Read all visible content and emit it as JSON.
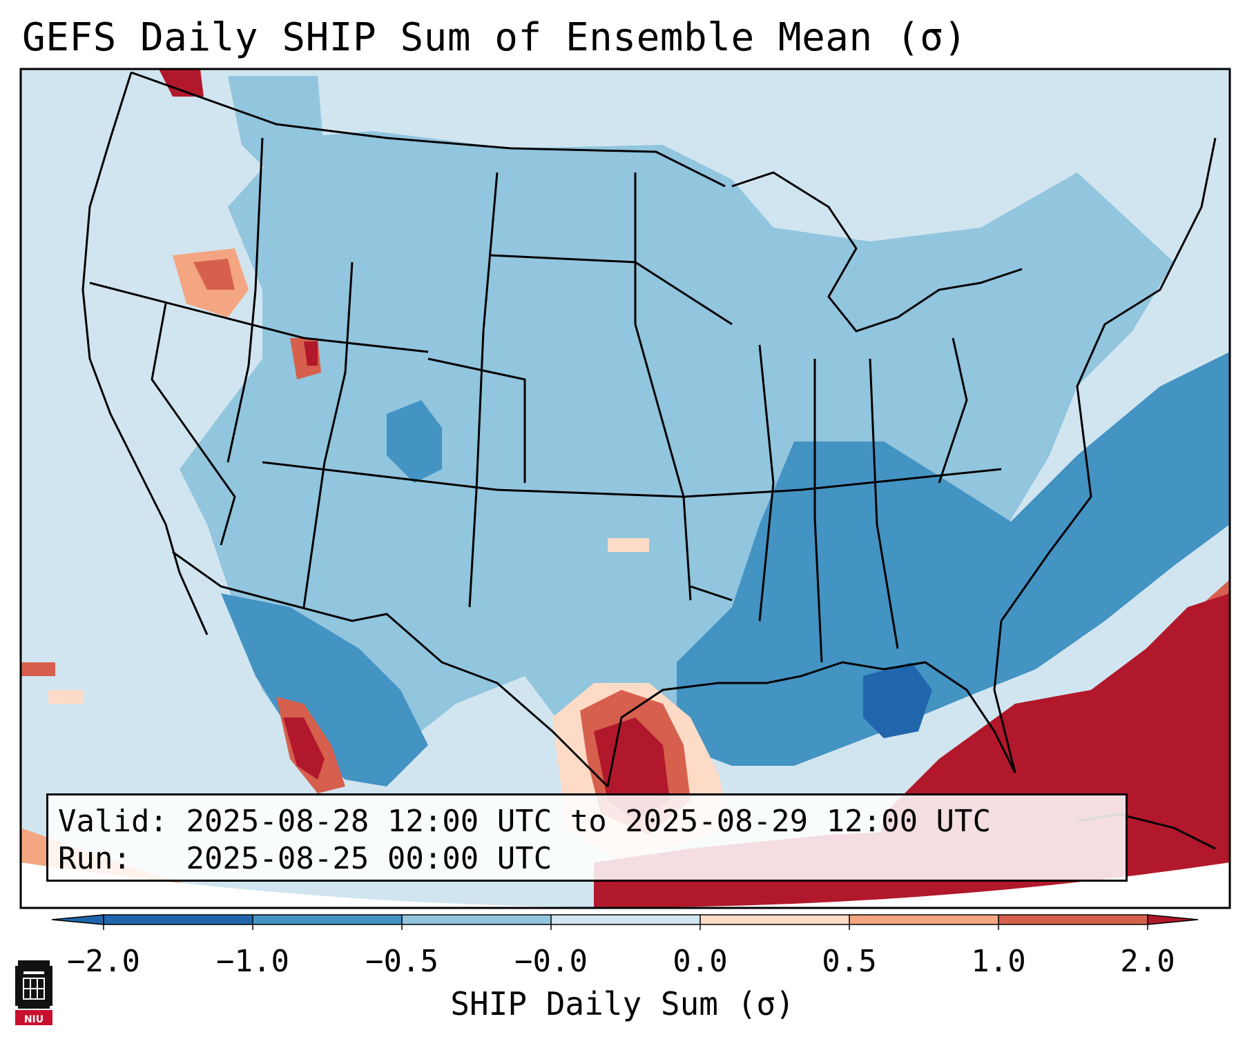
{
  "title": "GEFS Daily SHIP Sum of Ensemble Mean (σ)",
  "info": {
    "valid_label": "Valid:",
    "valid_range": "2025-08-28 12:00 UTC to 2025-08-29 12:00 UTC",
    "run_label": "Run:",
    "run_time": "2025-08-25 00:00 UTC"
  },
  "colorbar": {
    "label": "SHIP Daily Sum (σ)",
    "ticks": [
      "−2.0",
      "−1.0",
      "−0.5",
      "−0.0",
      "0.0",
      "0.5",
      "1.0",
      "2.0"
    ],
    "colors": [
      "#2166ac",
      "#4393c3",
      "#92c5de",
      "#d1e5f0",
      "#fddbc7",
      "#f4a582",
      "#d6604d",
      "#b2182b"
    ],
    "extend_low_color": "#2166ac",
    "extend_high_color": "#b2182b"
  },
  "logo": {
    "text": "NIU"
  }
}
